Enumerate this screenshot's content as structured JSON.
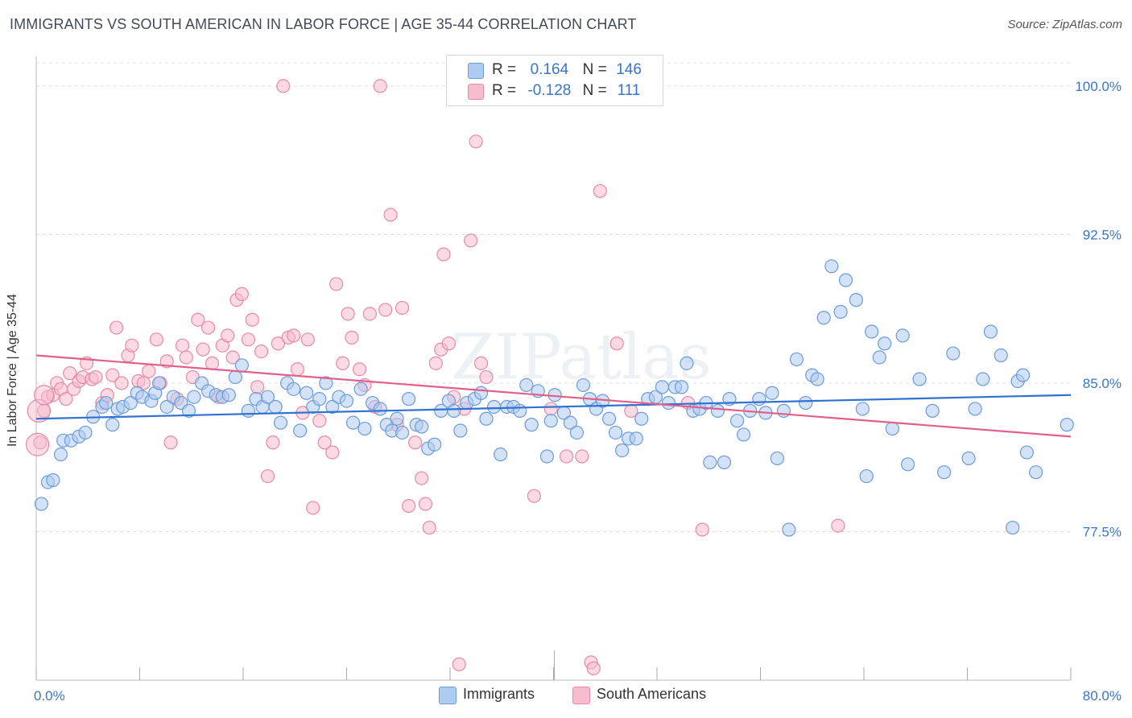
{
  "title": "IMMIGRANTS VS SOUTH AMERICAN IN LABOR FORCE | AGE 35-44 CORRELATION CHART",
  "source": "Source: ZipAtlas.com",
  "watermark": "ZIPatlas",
  "legend_top": {
    "rows": [
      {
        "r_label": "R =",
        "r_value": "0.164",
        "n_label": "N =",
        "n_value": "146",
        "color": "#aecbf0",
        "stroke": "#6b9bd8"
      },
      {
        "r_label": "R =",
        "r_value": "-0.128",
        "n_label": "N =",
        "n_value": "111",
        "color": "#f7bccd",
        "stroke": "#e889a6"
      }
    ]
  },
  "chart_data": {
    "type": "scatter",
    "xlabel": "",
    "ylabel": "In Labor Force | Age 35-44",
    "xlim": [
      0,
      80
    ],
    "ylim": [
      70,
      101.5
    ],
    "x_tick_labels": [
      "0.0%",
      "80.0%"
    ],
    "y_ticks": [
      77.5,
      85.0,
      92.5,
      100.0
    ],
    "y_tick_labels": [
      "77.5%",
      "85.0%",
      "92.5%",
      "100.0%"
    ],
    "grid": true,
    "legend_position": "bottom-center",
    "series": [
      {
        "name": "Immigrants",
        "color": "#aecbf0",
        "stroke": "#6b9bd8",
        "trend_color": "#2f72d1",
        "trend": {
          "x": [
            0,
            80
          ],
          "y": [
            83.2,
            84.4
          ]
        },
        "points": [
          [
            0.4,
            78.9
          ],
          [
            0.9,
            80.0
          ],
          [
            1.3,
            80.1
          ],
          [
            1.9,
            81.4
          ],
          [
            2.1,
            82.1
          ],
          [
            2.7,
            82.1
          ],
          [
            3.3,
            82.3
          ],
          [
            3.8,
            82.5
          ],
          [
            4.4,
            83.3
          ],
          [
            5.1,
            83.8
          ],
          [
            5.4,
            84.0
          ],
          [
            5.9,
            82.9
          ],
          [
            6.3,
            83.7
          ],
          [
            6.7,
            83.8
          ],
          [
            7.3,
            84.0
          ],
          [
            7.8,
            84.5
          ],
          [
            8.2,
            84.3
          ],
          [
            8.9,
            84.1
          ],
          [
            9.2,
            84.5
          ],
          [
            9.5,
            85.0
          ],
          [
            10.1,
            83.8
          ],
          [
            10.6,
            84.3
          ],
          [
            11.2,
            84.0
          ],
          [
            11.8,
            83.6
          ],
          [
            12.2,
            84.3
          ],
          [
            12.8,
            85.0
          ],
          [
            13.3,
            84.6
          ],
          [
            13.9,
            84.4
          ],
          [
            14.4,
            84.3
          ],
          [
            14.9,
            84.4
          ],
          [
            15.4,
            85.3
          ],
          [
            15.9,
            85.9
          ],
          [
            16.4,
            83.6
          ],
          [
            17.0,
            84.2
          ],
          [
            17.5,
            83.8
          ],
          [
            17.9,
            84.3
          ],
          [
            18.5,
            83.8
          ],
          [
            18.9,
            83.0
          ],
          [
            19.4,
            85.0
          ],
          [
            19.9,
            84.7
          ],
          [
            20.4,
            82.6
          ],
          [
            20.9,
            84.5
          ],
          [
            21.4,
            83.8
          ],
          [
            21.9,
            84.2
          ],
          [
            22.4,
            85.0
          ],
          [
            22.9,
            83.8
          ],
          [
            23.4,
            84.3
          ],
          [
            24.0,
            84.1
          ],
          [
            24.5,
            83.0
          ],
          [
            25.1,
            84.7
          ],
          [
            25.4,
            82.7
          ],
          [
            26.0,
            84.0
          ],
          [
            26.6,
            83.7
          ],
          [
            27.1,
            82.9
          ],
          [
            27.5,
            82.6
          ],
          [
            27.9,
            83.2
          ],
          [
            28.3,
            82.5
          ],
          [
            28.8,
            84.2
          ],
          [
            29.4,
            82.9
          ],
          [
            29.8,
            82.8
          ],
          [
            30.3,
            81.7
          ],
          [
            30.8,
            81.9
          ],
          [
            31.3,
            83.6
          ],
          [
            31.9,
            84.1
          ],
          [
            32.3,
            83.6
          ],
          [
            32.8,
            82.6
          ],
          [
            33.3,
            84.0
          ],
          [
            33.9,
            84.2
          ],
          [
            34.4,
            84.5
          ],
          [
            34.8,
            83.2
          ],
          [
            35.4,
            83.8
          ],
          [
            35.9,
            81.4
          ],
          [
            36.4,
            83.8
          ],
          [
            36.9,
            83.8
          ],
          [
            37.4,
            83.6
          ],
          [
            37.9,
            84.9
          ],
          [
            38.3,
            82.9
          ],
          [
            38.8,
            84.6
          ],
          [
            39.5,
            81.3
          ],
          [
            39.8,
            83.1
          ],
          [
            40.1,
            84.4
          ],
          [
            40.8,
            83.5
          ],
          [
            41.3,
            83.0
          ],
          [
            41.8,
            82.5
          ],
          [
            42.3,
            84.9
          ],
          [
            42.8,
            84.2
          ],
          [
            43.3,
            83.7
          ],
          [
            43.8,
            84.1
          ],
          [
            44.3,
            83.2
          ],
          [
            44.8,
            82.5
          ],
          [
            45.3,
            81.6
          ],
          [
            45.8,
            82.2
          ],
          [
            46.4,
            82.2
          ],
          [
            46.8,
            83.2
          ],
          [
            47.3,
            84.2
          ],
          [
            47.9,
            84.3
          ],
          [
            48.4,
            84.8
          ],
          [
            48.9,
            84.0
          ],
          [
            49.4,
            84.8
          ],
          [
            49.9,
            84.8
          ],
          [
            50.3,
            86.0
          ],
          [
            50.8,
            83.6
          ],
          [
            51.3,
            83.7
          ],
          [
            51.8,
            84.0
          ],
          [
            52.1,
            81.0
          ],
          [
            52.7,
            83.6
          ],
          [
            53.2,
            81.0
          ],
          [
            53.6,
            84.2
          ],
          [
            54.2,
            83.1
          ],
          [
            54.7,
            82.4
          ],
          [
            55.2,
            83.6
          ],
          [
            55.9,
            84.2
          ],
          [
            56.4,
            83.5
          ],
          [
            56.9,
            84.5
          ],
          [
            57.3,
            81.2
          ],
          [
            57.8,
            83.6
          ],
          [
            58.2,
            77.6
          ],
          [
            58.8,
            86.2
          ],
          [
            59.5,
            84.0
          ],
          [
            60.0,
            85.4
          ],
          [
            60.4,
            85.2
          ],
          [
            60.9,
            88.3
          ],
          [
            61.5,
            90.9
          ],
          [
            62.2,
            88.6
          ],
          [
            62.6,
            90.2
          ],
          [
            63.4,
            89.2
          ],
          [
            63.9,
            83.7
          ],
          [
            64.2,
            80.3
          ],
          [
            64.6,
            87.6
          ],
          [
            65.2,
            86.3
          ],
          [
            65.6,
            87.0
          ],
          [
            66.2,
            82.7
          ],
          [
            67.0,
            87.4
          ],
          [
            67.4,
            80.9
          ],
          [
            68.3,
            85.2
          ],
          [
            69.3,
            83.6
          ],
          [
            70.2,
            80.5
          ],
          [
            70.9,
            86.5
          ],
          [
            72.1,
            81.2
          ],
          [
            72.6,
            83.7
          ],
          [
            73.2,
            85.2
          ],
          [
            73.8,
            87.6
          ],
          [
            74.6,
            86.4
          ],
          [
            75.5,
            77.7
          ],
          [
            75.9,
            85.1
          ],
          [
            76.3,
            85.4
          ],
          [
            76.6,
            81.5
          ],
          [
            77.3,
            80.5
          ],
          [
            79.7,
            82.9
          ]
        ]
      },
      {
        "name": "South Americans",
        "color": "#f7bccd",
        "stroke": "#e889a6",
        "trend_color": "#e25f8a",
        "trend": {
          "x": [
            0,
            80
          ],
          "y": [
            86.4,
            82.3
          ]
        },
        "points": [
          [
            0.3,
            82.0
          ],
          [
            0.6,
            83.6
          ],
          [
            0.9,
            84.3
          ],
          [
            1.3,
            84.4
          ],
          [
            1.6,
            85.0
          ],
          [
            1.9,
            84.7
          ],
          [
            2.3,
            84.2
          ],
          [
            2.6,
            85.5
          ],
          [
            2.9,
            84.7
          ],
          [
            3.3,
            85.1
          ],
          [
            3.6,
            85.3
          ],
          [
            3.9,
            86.0
          ],
          [
            4.3,
            85.2
          ],
          [
            4.6,
            85.3
          ],
          [
            5.1,
            84.0
          ],
          [
            5.5,
            84.4
          ],
          [
            5.9,
            85.4
          ],
          [
            6.2,
            87.8
          ],
          [
            6.6,
            85.0
          ],
          [
            7.1,
            86.4
          ],
          [
            7.4,
            86.9
          ],
          [
            7.9,
            85.1
          ],
          [
            8.3,
            85.0
          ],
          [
            8.7,
            85.6
          ],
          [
            9.3,
            87.2
          ],
          [
            9.6,
            85.0
          ],
          [
            10.1,
            86.1
          ],
          [
            10.4,
            82.0
          ],
          [
            10.9,
            84.2
          ],
          [
            11.3,
            86.9
          ],
          [
            11.6,
            86.3
          ],
          [
            12.1,
            85.3
          ],
          [
            12.5,
            88.2
          ],
          [
            12.9,
            86.7
          ],
          [
            13.3,
            87.8
          ],
          [
            13.6,
            86.0
          ],
          [
            14.1,
            84.3
          ],
          [
            14.4,
            86.9
          ],
          [
            14.8,
            87.4
          ],
          [
            15.2,
            86.3
          ],
          [
            15.5,
            89.2
          ],
          [
            15.9,
            89.5
          ],
          [
            16.4,
            87.2
          ],
          [
            16.7,
            88.2
          ],
          [
            17.1,
            84.8
          ],
          [
            17.4,
            86.6
          ],
          [
            17.9,
            80.3
          ],
          [
            18.3,
            82.0
          ],
          [
            18.7,
            87.0
          ],
          [
            19.1,
            100.0
          ],
          [
            19.5,
            87.3
          ],
          [
            19.9,
            87.4
          ],
          [
            20.2,
            85.7
          ],
          [
            20.6,
            83.5
          ],
          [
            21.0,
            87.2
          ],
          [
            21.4,
            78.7
          ],
          [
            21.9,
            83.1
          ],
          [
            22.3,
            82.0
          ],
          [
            22.9,
            81.5
          ],
          [
            23.2,
            90.0
          ],
          [
            23.7,
            86.0
          ],
          [
            24.1,
            88.5
          ],
          [
            24.4,
            87.3
          ],
          [
            25.0,
            85.7
          ],
          [
            25.4,
            84.9
          ],
          [
            25.8,
            88.5
          ],
          [
            26.2,
            83.8
          ],
          [
            26.6,
            100.0
          ],
          [
            27.0,
            88.7
          ],
          [
            27.4,
            93.5
          ],
          [
            27.9,
            82.9
          ],
          [
            28.3,
            88.8
          ],
          [
            28.8,
            78.8
          ],
          [
            29.3,
            82.0
          ],
          [
            29.8,
            80.2
          ],
          [
            30.1,
            78.9
          ],
          [
            30.4,
            77.7
          ],
          [
            30.9,
            86.0
          ],
          [
            31.3,
            86.7
          ],
          [
            31.5,
            91.5
          ],
          [
            31.9,
            87.0
          ],
          [
            32.3,
            84.3
          ],
          [
            32.7,
            70.8
          ],
          [
            33.1,
            83.7
          ],
          [
            33.6,
            92.2
          ],
          [
            34.0,
            97.2
          ],
          [
            34.4,
            86.0
          ],
          [
            34.8,
            85.3
          ],
          [
            38.5,
            79.3
          ],
          [
            39.8,
            83.7
          ],
          [
            41.0,
            81.3
          ],
          [
            42.2,
            81.3
          ],
          [
            42.9,
            70.9
          ],
          [
            43.1,
            70.6
          ],
          [
            43.6,
            94.7
          ],
          [
            44.9,
            87.0
          ],
          [
            46.0,
            83.6
          ],
          [
            50.4,
            84.0
          ],
          [
            51.5,
            77.6
          ],
          [
            62.0,
            77.8
          ]
        ]
      }
    ]
  }
}
